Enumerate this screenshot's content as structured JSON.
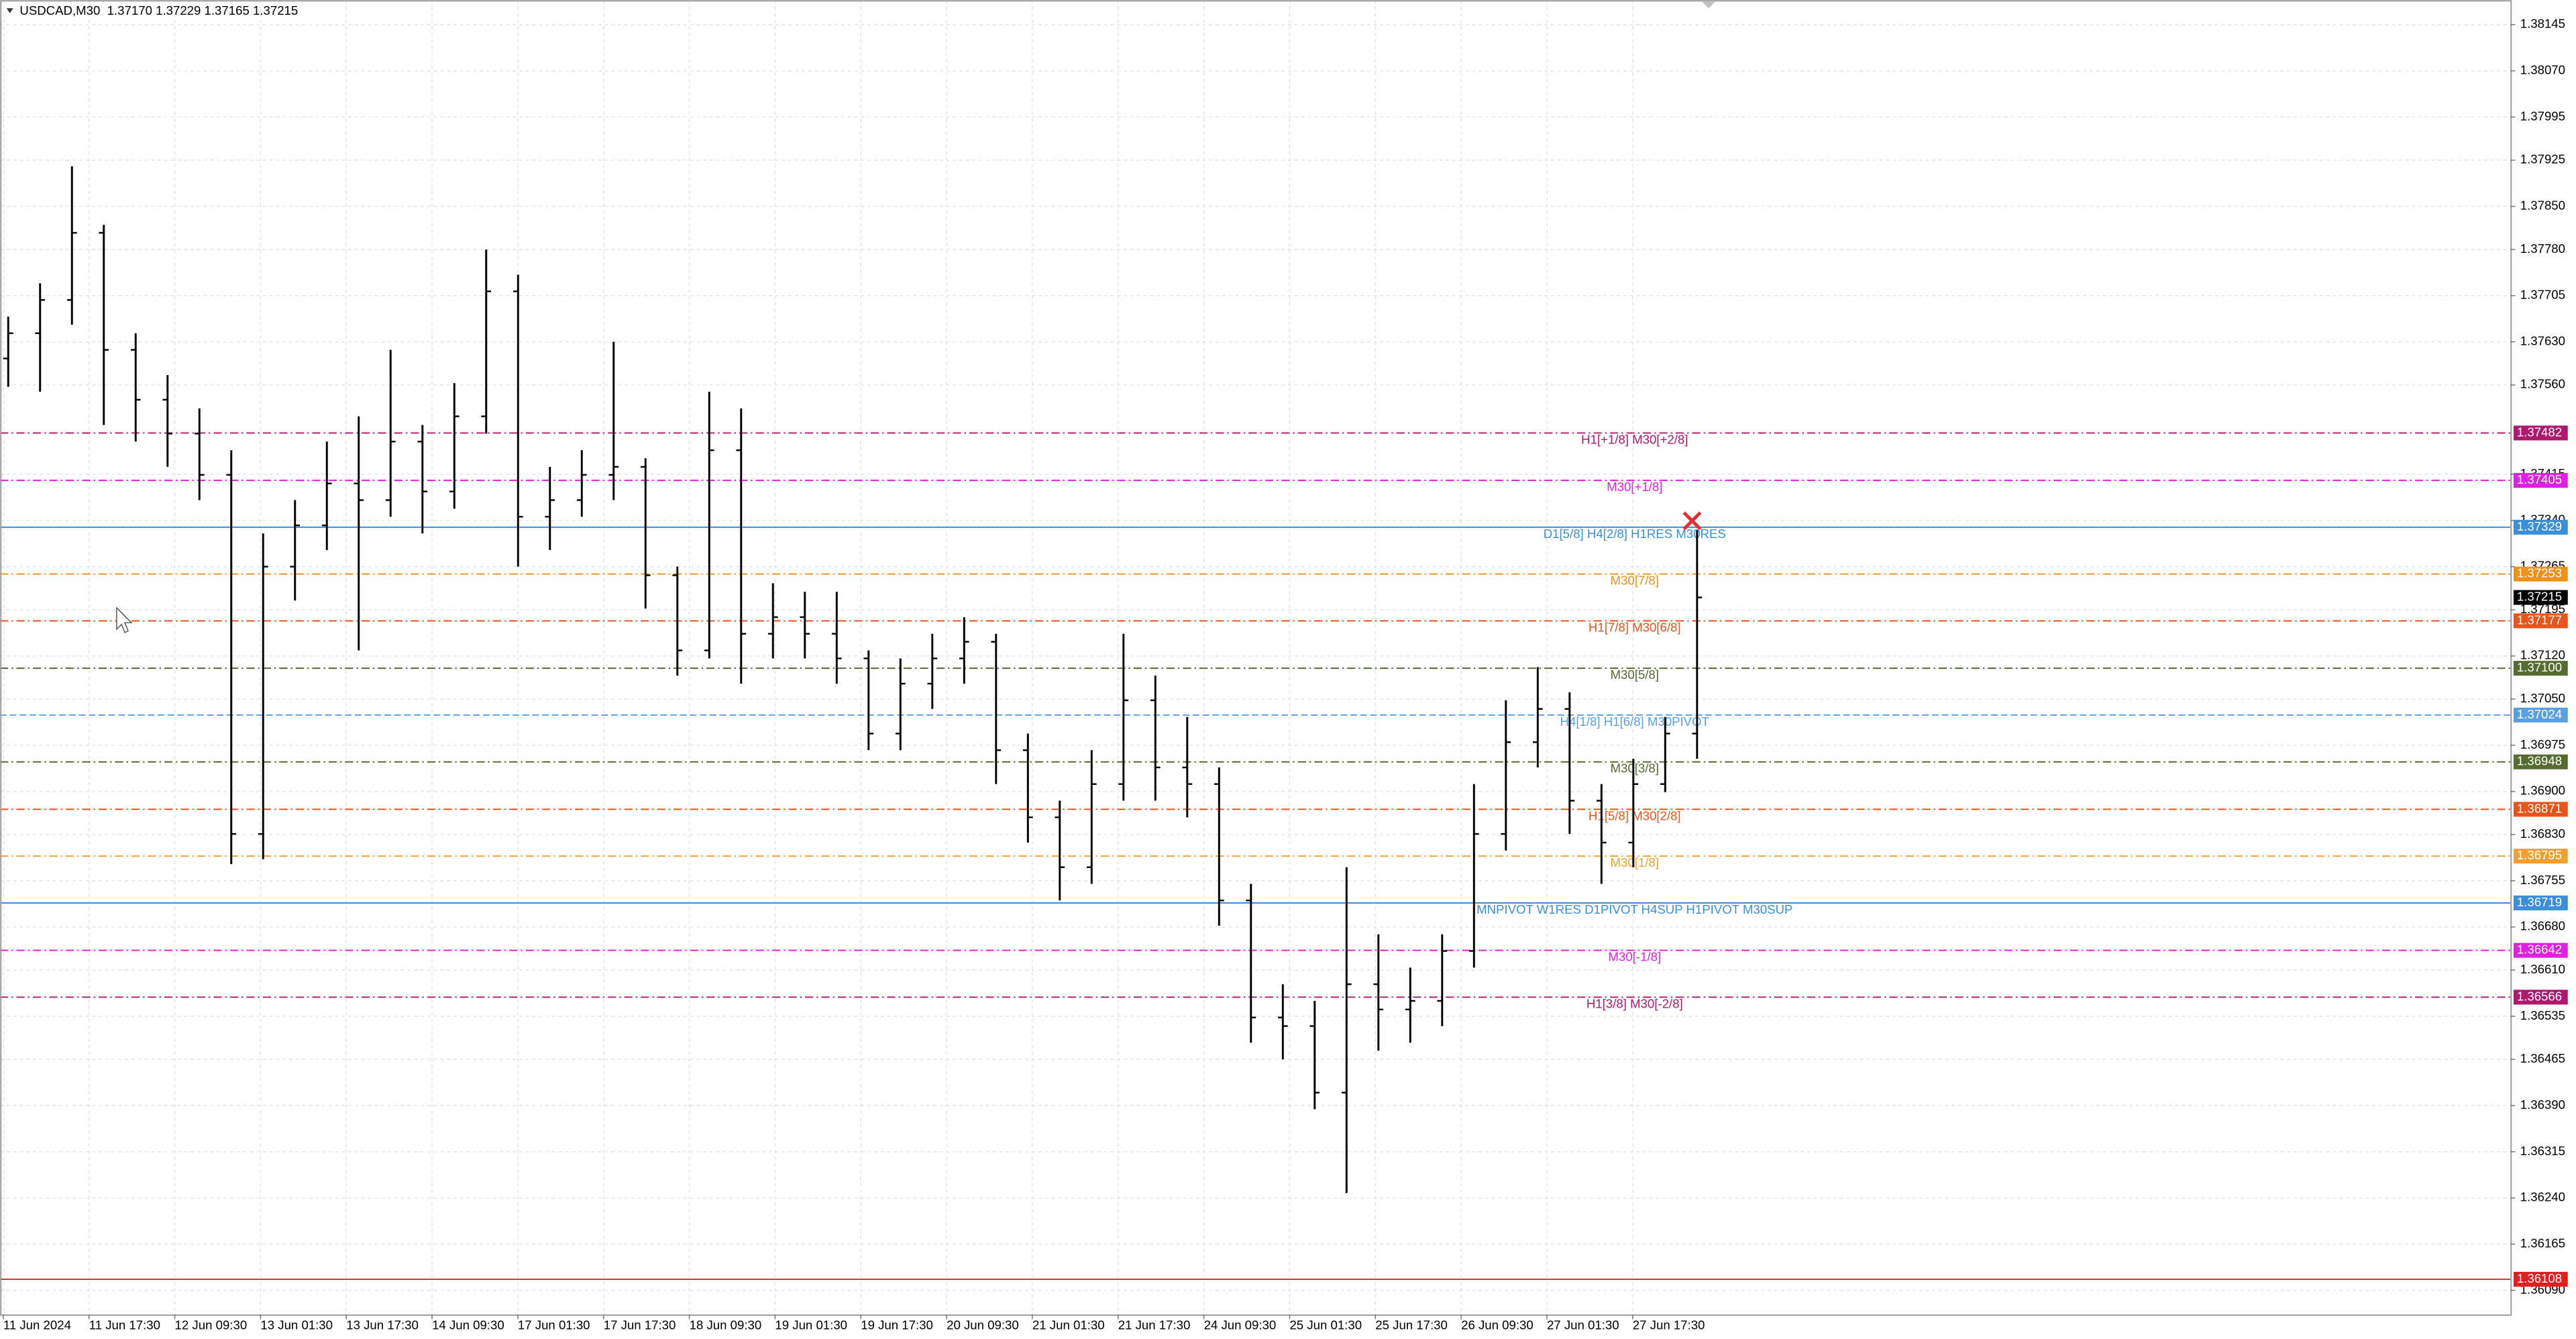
{
  "chart_data": {
    "type": "ohlc",
    "title": "USDCAD,M30  1.37170 1.37229 1.37165 1.37215",
    "color": "#000000",
    "open": [
      1.37603,
      1.37644,
      1.37698,
      1.37807,
      1.37617,
      1.37536,
      1.37481,
      1.37414,
      1.36831,
      1.37265,
      1.37332,
      1.374,
      1.37373,
      1.37468,
      1.37387,
      1.37509,
      1.37712,
      1.37346,
      1.37373,
      1.37414,
      1.37427,
      1.37251,
      1.37129,
      1.37454,
      1.37156,
      1.37183,
      1.37156,
      1.37116,
      1.36994,
      1.37075,
      1.37116,
      1.37143,
      1.36967,
      1.36858,
      1.36777,
      1.36912,
      1.37048,
      1.36939,
      1.36912,
      1.36723,
      1.36533,
      1.36519,
      1.36411,
      1.36587,
      1.36546,
      1.3656,
      1.36641,
      1.36831,
      1.3698,
      1.37034,
      1.36885,
      1.36817,
      1.36912,
      1.36994
    ],
    "high": [
      1.37671,
      1.37725,
      1.37915,
      1.3782,
      1.37644,
      1.37576,
      1.37522,
      1.37454,
      1.37319,
      1.37373,
      1.37468,
      1.37509,
      1.37617,
      1.37495,
      1.37563,
      1.3778,
      1.37739,
      1.37427,
      1.37454,
      1.3763,
      1.37441,
      1.37265,
      1.37549,
      1.37522,
      1.37238,
      1.37224,
      1.37224,
      1.37129,
      1.37116,
      1.37156,
      1.37183,
      1.37156,
      1.36994,
      1.36885,
      1.36967,
      1.37156,
      1.37088,
      1.37021,
      1.36939,
      1.3675,
      1.36587,
      1.3656,
      1.36777,
      1.36668,
      1.36614,
      1.36668,
      1.36912,
      1.37048,
      1.37102,
      1.37061,
      1.36912,
      1.36953,
      1.37021,
      1.37324
    ],
    "low": [
      1.37557,
      1.37549,
      1.37658,
      1.37495,
      1.37468,
      1.37427,
      1.37373,
      1.36782,
      1.3679,
      1.3721,
      1.37292,
      1.37129,
      1.37346,
      1.37319,
      1.37359,
      1.37481,
      1.37265,
      1.37292,
      1.37346,
      1.37373,
      1.37197,
      1.37088,
      1.37116,
      1.37075,
      1.37116,
      1.37116,
      1.37075,
      1.36967,
      1.36967,
      1.37034,
      1.37075,
      1.36912,
      1.36817,
      1.36723,
      1.3675,
      1.36885,
      1.36885,
      1.36858,
      1.36682,
      1.36492,
      1.36465,
      1.36384,
      1.36248,
      1.36479,
      1.36492,
      1.36519,
      1.36614,
      1.36804,
      1.36939,
      1.36831,
      1.3675,
      1.36777,
      1.36899,
      1.36953
    ],
    "close": [
      1.37644,
      1.37698,
      1.37807,
      1.37617,
      1.37536,
      1.37481,
      1.37414,
      1.36831,
      1.37265,
      1.37332,
      1.374,
      1.37373,
      1.37468,
      1.37387,
      1.37509,
      1.37712,
      1.37346,
      1.37373,
      1.37414,
      1.37427,
      1.37251,
      1.37129,
      1.37454,
      1.37156,
      1.37183,
      1.37156,
      1.37116,
      1.36994,
      1.37075,
      1.37116,
      1.37143,
      1.36967,
      1.36858,
      1.36777,
      1.36912,
      1.37048,
      1.36939,
      1.36912,
      1.36723,
      1.36533,
      1.36519,
      1.36411,
      1.36587,
      1.36546,
      1.3656,
      1.36641,
      1.36831,
      1.3698,
      1.37034,
      1.36885,
      1.36817,
      1.36912,
      1.36994,
      1.37215
    ],
    "ylim": [
      1.36051,
      1.38185
    ],
    "yticks": [
      1.38145,
      {
        "value": 1.3807,
        "label": "1.38070"
      },
      1.37995,
      1.37925,
      {
        "value": 1.3785,
        "label": "1.37850"
      },
      {
        "value": 1.3778,
        "label": "1.37780"
      },
      1.37705,
      {
        "value": 1.3763,
        "label": "1.37630"
      },
      {
        "value": 1.3756,
        "label": "1.37560"
      },
      1.37415,
      {
        "value": 1.3734,
        "label": "1.37340"
      },
      1.37265,
      1.37195,
      {
        "value": 1.3712,
        "label": "1.37120"
      },
      {
        "value": 1.3705,
        "label": "1.37050"
      },
      1.36975,
      {
        "value": 1.369,
        "label": "1.36900"
      },
      {
        "value": 1.3683,
        "label": "1.36830"
      },
      1.36755,
      {
        "value": 1.3668,
        "label": "1.36680"
      },
      {
        "value": 1.3661,
        "label": "1.36610"
      },
      1.36535,
      1.36465,
      {
        "value": 1.3639,
        "label": "1.36390"
      },
      1.36315,
      {
        "value": 1.3624,
        "label": "1.36240"
      },
      1.36165,
      {
        "value": 1.3609,
        "label": "1.36090"
      }
    ],
    "time_labels": [
      "11 Jun 2024",
      "11 Jun 17:30",
      "12 Jun 09:30",
      "13 Jun 01:30",
      "13 Jun 17:30",
      "14 Jun 09:30",
      "17 Jun 01:30",
      "17 Jun 17:30",
      "18 Jun 09:30",
      "19 Jun 01:30",
      "19 Jun 17:30",
      "20 Jun 09:30",
      "21 Jun 01:30",
      "21 Jun 17:30",
      "24 Jun 09:30",
      "25 Jun 01:30",
      "25 Jun 17:30",
      "26 Jun 09:30",
      "27 Jun 01:30",
      "27 Jun 17:30"
    ],
    "grid": true,
    "levels": {
      "names": [
        "H1[+1/8] M30[+2/8]",
        "M30[+1/8]",
        "D1[5/8] H4[2/8] H1RES M30RES",
        "M30[7/8]",
        "H1[7/8] M30[6/8]",
        "M30[5/8]",
        "H4[1/8] H1[6/8] M30PIVOT",
        "M30[3/8]",
        "H1[5/8] M30[2/8]",
        "M30[1/8]",
        "MNPIVOT W1RES D1PIVOT H4SUP H1PIVOT M30SUP",
        "M30[-1/8]",
        "H1[3/8] M30[-2/8]",
        null
      ],
      "values": [
        1.37482,
        1.37405,
        1.37329,
        1.37253,
        1.37177,
        1.371,
        1.37024,
        1.36948,
        1.36871,
        1.36795,
        1.36719,
        1.36642,
        1.36566,
        1.36108
      ],
      "value_labels": [
        "1.37482",
        "1.37405",
        "1.37329",
        "1.37253",
        "1.37177",
        "1.37100",
        "1.37024",
        "1.36948",
        "1.36871",
        "1.36795",
        "1.36719",
        "1.36642",
        "1.36566",
        "1.36108"
      ],
      "colors": [
        "#b0186e",
        "#e020e0",
        "#3a8fd8",
        "#f0901a",
        "#e8541a",
        "#556b2f",
        "#5aa0e0",
        "#556b2f",
        "#e8541a",
        "#f0a030",
        "#3a8fd8",
        "#e020e0",
        "#b0186e",
        "#e02020"
      ],
      "styles": [
        "dashdot",
        "dashdot",
        "solid",
        "dashdot",
        "dashdot",
        "dashdot",
        "dashed",
        "dashdot",
        "dashdot",
        "dashdot",
        "solid",
        "dashdot",
        "dashdot",
        "solid"
      ]
    },
    "price_tag": {
      "value": 1.37215,
      "color": "#000000"
    }
  }
}
